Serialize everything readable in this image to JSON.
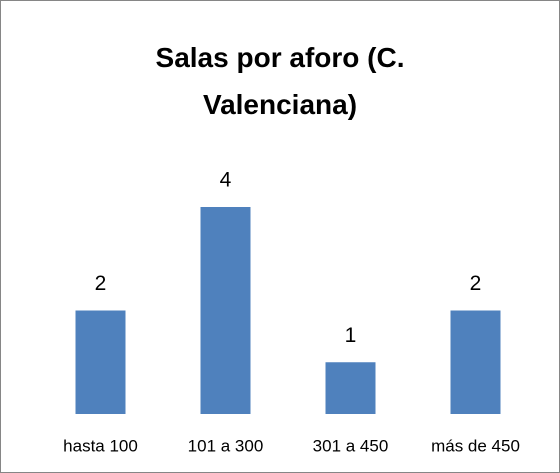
{
  "chart_data": {
    "type": "bar",
    "title": "Salas por aforo (C. Valenciana)",
    "categories": [
      "hasta 100",
      "101 a 300",
      "301 a 450",
      "más de 450"
    ],
    "values": [
      2,
      4,
      1,
      2
    ],
    "color": "#4f81bd"
  }
}
